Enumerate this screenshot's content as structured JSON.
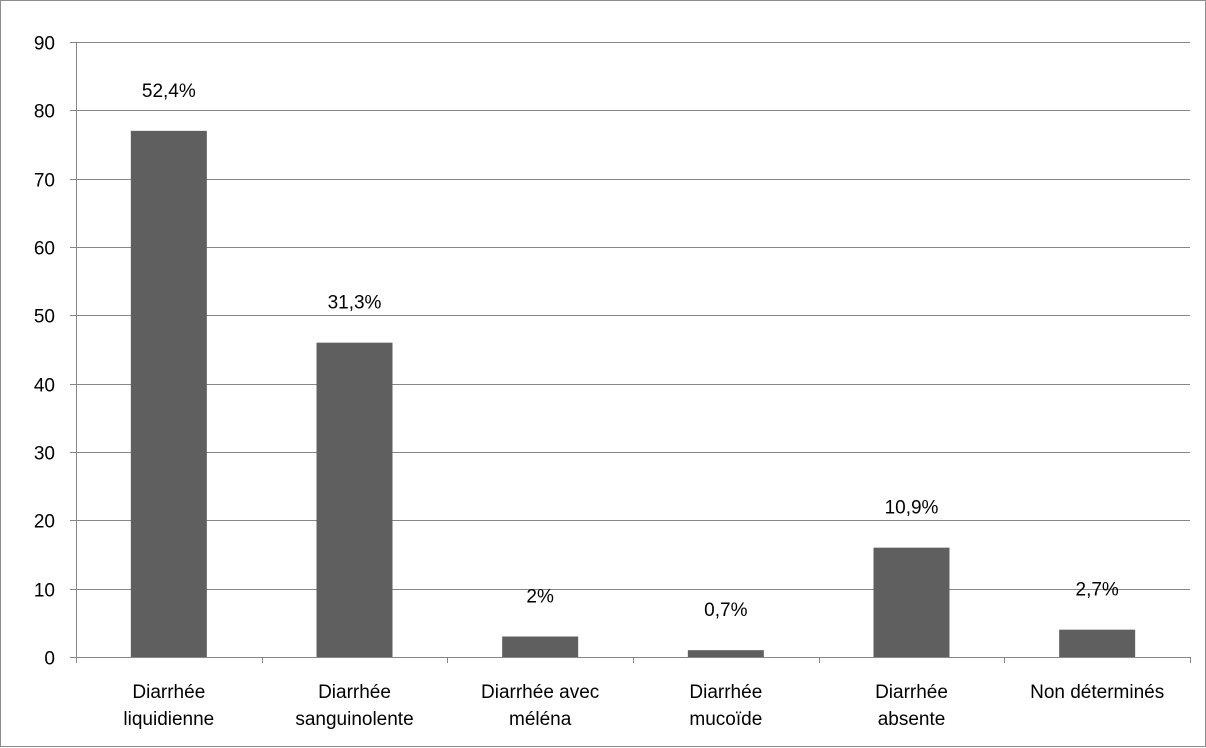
{
  "chart_data": {
    "type": "bar",
    "categories": [
      [
        "Diarrhée",
        "liquidienne"
      ],
      [
        "Diarrhée",
        "sanguinolente"
      ],
      [
        "Diarrhée avec",
        "méléna"
      ],
      [
        "Diarrhée",
        "mucoïde"
      ],
      [
        "Diarrhée",
        "absente"
      ],
      [
        "Non déterminés"
      ]
    ],
    "values": [
      77,
      46,
      3,
      1,
      16,
      4
    ],
    "data_labels": [
      "52,4%",
      "31,3%",
      "2%",
      "0,7%",
      "10,9%",
      "2,7%"
    ],
    "ylim": [
      0,
      90
    ],
    "yticks": [
      0,
      10,
      20,
      30,
      40,
      50,
      60,
      70,
      80,
      90
    ],
    "grid": true,
    "legend": "none",
    "bar_color": "#5f5f5f",
    "grid_color": "#868686"
  }
}
